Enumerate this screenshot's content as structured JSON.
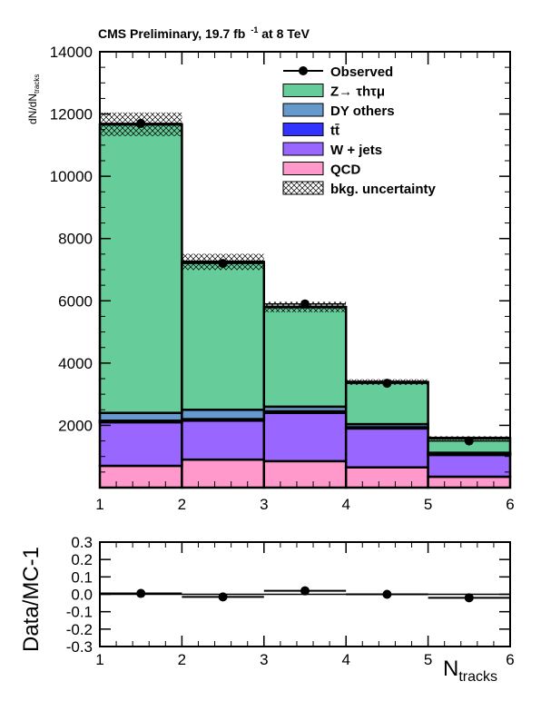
{
  "header": {
    "title": "CMS Preliminary,  19.7 fb",
    "lumi_sup": "-1",
    "energy": " at 8 TeV"
  },
  "colors": {
    "ztt": "#66cc99",
    "dy_others": "#6699cc",
    "ttbar": "#3333ff",
    "wjets": "#9966ff",
    "qcd": "#ff99cc",
    "observed": "#000000"
  },
  "chart_data": [
    {
      "type": "bar",
      "stacked": true,
      "ylabel_main": "dN/dN",
      "ylabel_sub": "tracks",
      "bin_edges": [
        1,
        2,
        3,
        4,
        5,
        6
      ],
      "xlim": [
        1,
        6
      ],
      "ylim": [
        0,
        14000
      ],
      "x_ticks": [
        1,
        2,
        3,
        4,
        5,
        6
      ],
      "x_tick_labels": [
        "1",
        "2",
        "3",
        "4",
        "5",
        "6"
      ],
      "y_ticks": [
        2000,
        4000,
        6000,
        8000,
        10000,
        12000,
        14000
      ],
      "y_tick_labels": [
        "2000",
        "4000",
        "6000",
        "8000",
        "10000",
        "12000",
        "14000"
      ],
      "series": [
        {
          "name": "QCD",
          "values": [
            700,
            900,
            850,
            650,
            350
          ]
        },
        {
          "name": "W + jets",
          "values": [
            1400,
            1250,
            1550,
            1250,
            700
          ]
        },
        {
          "name": "tt̄",
          "values": [
            50,
            50,
            50,
            40,
            30
          ]
        },
        {
          "name": "DY others",
          "values": [
            250,
            300,
            150,
            100,
            40
          ]
        },
        {
          "name": "Z→ τhτμ",
          "values": [
            9270,
            4750,
            3200,
            1350,
            470
          ]
        }
      ],
      "uncertainty": {
        "name": "bkg. uncertainty",
        "half_width": [
          380,
          260,
          170,
          90,
          60
        ]
      },
      "observed": {
        "name": "Observed",
        "x": [
          1.5,
          2.5,
          3.5,
          4.5,
          5.5
        ],
        "y": [
          11700,
          7200,
          5900,
          3350,
          1500
        ]
      },
      "legend_placement": "top-right"
    },
    {
      "type": "scatter",
      "ylabel": "Data/MC-1",
      "xlabel_main": "N",
      "xlabel_sub": "tracks",
      "xlim": [
        1,
        6
      ],
      "ylim": [
        -0.3,
        0.3
      ],
      "x_tick_labels": [
        "1",
        "2",
        "3",
        "4",
        "5",
        "6"
      ],
      "y_ticks": [
        -0.3,
        -0.2,
        -0.1,
        0.0,
        0.1,
        0.2,
        0.3
      ],
      "y_tick_labels": [
        "-0.3",
        "-0.2",
        "-0.1",
        "0.0",
        "0.1",
        "0.2",
        "0.3"
      ],
      "x": [
        1.5,
        2.5,
        3.5,
        4.5,
        5.5
      ],
      "y": [
        0.005,
        -0.015,
        0.02,
        0.0,
        -0.02
      ],
      "yerr": [
        0.015,
        0.01,
        0.012,
        0.005,
        0.01
      ]
    }
  ]
}
